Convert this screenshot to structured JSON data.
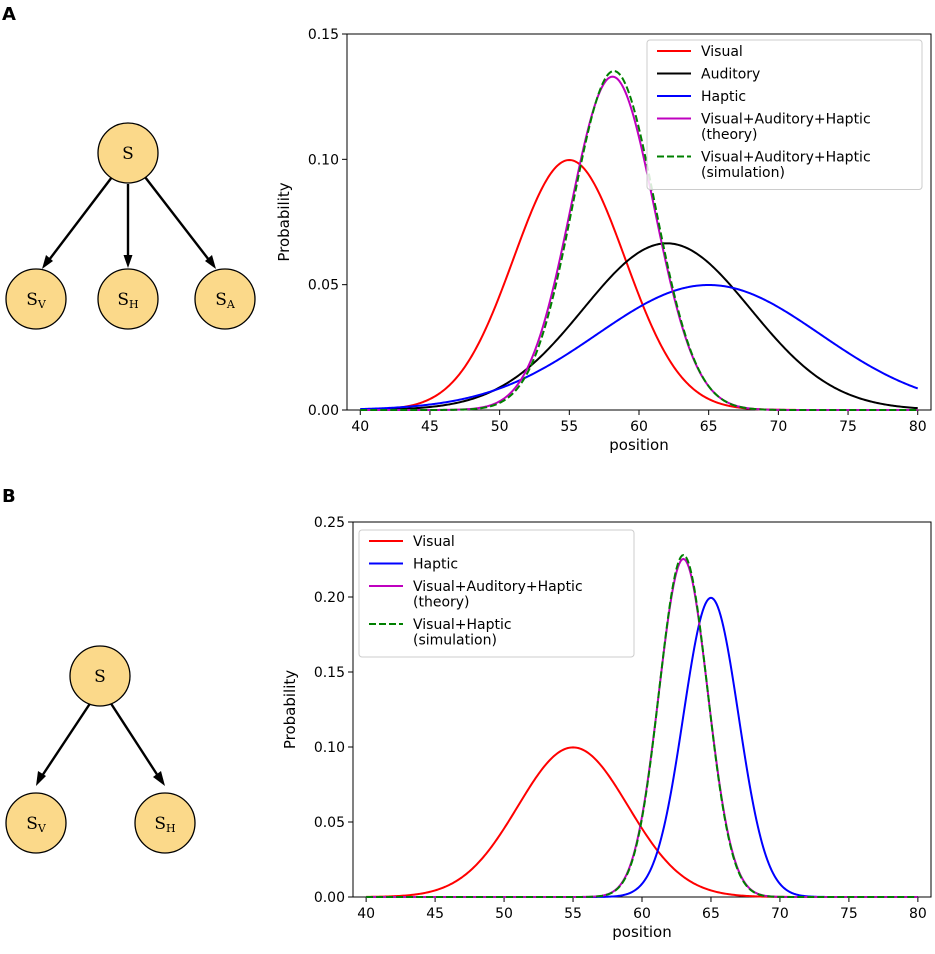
{
  "panels": [
    {
      "label": "A",
      "graph": {
        "root": "S",
        "children": [
          {
            "base": "S",
            "sub": "V"
          },
          {
            "base": "S",
            "sub": "H"
          },
          {
            "base": "S",
            "sub": "A"
          }
        ]
      }
    },
    {
      "label": "B",
      "graph": {
        "root": "S",
        "children": [
          {
            "base": "S",
            "sub": "V"
          },
          {
            "base": "S",
            "sub": "H"
          }
        ]
      }
    }
  ],
  "chart_data": [
    {
      "type": "line",
      "xlabel": "position",
      "ylabel": "Probability",
      "xlim": [
        40,
        80
      ],
      "ylim": [
        0,
        0.15
      ],
      "xticks": [
        "40",
        "45",
        "50",
        "55",
        "60",
        "65",
        "70",
        "75",
        "80"
      ],
      "yticks": [
        "0.00",
        "0.05",
        "0.10",
        "0.15"
      ],
      "legend_position": "top-right",
      "grid": false,
      "series": [
        {
          "name": "Visual",
          "legend": [
            "Visual"
          ],
          "color": "#ff0000",
          "dash": "solid",
          "mean": 55,
          "sd": 4
        },
        {
          "name": "Auditory",
          "legend": [
            "Auditory"
          ],
          "color": "#000000",
          "dash": "solid",
          "mean": 62,
          "sd": 6
        },
        {
          "name": "Haptic",
          "legend": [
            "Haptic"
          ],
          "color": "#0000ff",
          "dash": "solid",
          "mean": 65,
          "sd": 8
        },
        {
          "name": "Visual+Auditory+Haptic (theory)",
          "legend": [
            "Visual+Auditory+Haptic",
            "(theory)"
          ],
          "color": "#bf00bf",
          "dash": "solid",
          "mean": 58.1,
          "sd": 3
        },
        {
          "name": "Visual+Auditory+Haptic (simulation)",
          "legend": [
            "Visual+Auditory+Haptic",
            "(simulation)"
          ],
          "color": "#008000",
          "dash": "dashed",
          "mean": 58.2,
          "sd": 2.95
        }
      ]
    },
    {
      "type": "line",
      "xlabel": "position",
      "ylabel": "Probability",
      "xlim": [
        40,
        80
      ],
      "ylim": [
        0,
        0.25
      ],
      "xticks": [
        "40",
        "45",
        "50",
        "55",
        "60",
        "65",
        "70",
        "75",
        "80"
      ],
      "yticks": [
        "0.00",
        "0.05",
        "0.10",
        "0.15",
        "0.20",
        "0.25"
      ],
      "legend_position": "top-left",
      "grid": false,
      "series": [
        {
          "name": "Visual",
          "legend": [
            "Visual"
          ],
          "color": "#ff0000",
          "dash": "solid",
          "mean": 55,
          "sd": 4
        },
        {
          "name": "Haptic",
          "legend": [
            "Haptic"
          ],
          "color": "#0000ff",
          "dash": "solid",
          "mean": 65,
          "sd": 2
        },
        {
          "name": "Visual+Auditory+Haptic (theory)",
          "legend": [
            "Visual+Auditory+Haptic",
            "(theory)"
          ],
          "color": "#bf00bf",
          "dash": "solid",
          "mean": 63,
          "sd": 1.77
        },
        {
          "name": "Visual+Haptic (simulation)",
          "legend": [
            "Visual+Haptic",
            "(simulation)"
          ],
          "color": "#008000",
          "dash": "dashed",
          "mean": 63,
          "sd": 1.75
        }
      ]
    }
  ]
}
